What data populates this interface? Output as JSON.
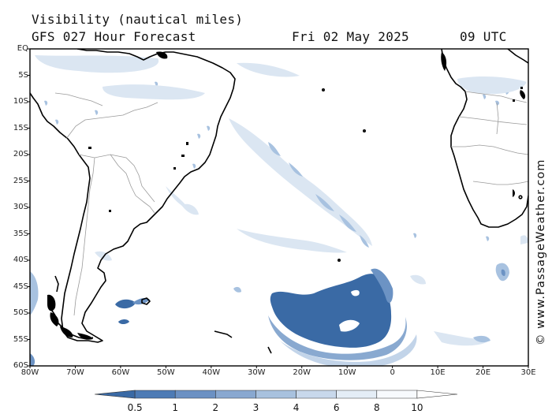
{
  "header": {
    "title": "Visibility (nautical miles)",
    "subtitle": "GFS 027 Hour Forecast",
    "date": "Fri 02 May 2025",
    "time": "09 UTC"
  },
  "credit": "© www.PassageWeather.com",
  "map": {
    "lat_labels": [
      "EQ",
      "5S",
      "10S",
      "15S",
      "20S",
      "25S",
      "30S",
      "35S",
      "40S",
      "45S",
      "50S",
      "55S",
      "60S"
    ],
    "lon_labels": [
      "80W",
      "70W",
      "60W",
      "50W",
      "40W",
      "30W",
      "20W",
      "10W",
      "0",
      "10E",
      "20E",
      "30E"
    ],
    "colors": {
      "land_border": "#000000",
      "country_border": "#9a9a9a",
      "fog_dense": "#3a6aa5",
      "fog_medium": "#6c93c4",
      "fog_light": "#a8c2e0",
      "fog_faint": "#dbe6f2"
    }
  },
  "colorbar": {
    "labels": [
      "0.5",
      "1",
      "2",
      "3",
      "4",
      "6",
      "8",
      "10"
    ],
    "colors": [
      "#3a6aa5",
      "#4d7bb5",
      "#6b91c3",
      "#89a8d0",
      "#a8c1de",
      "#c8d8eb",
      "#e4edf6",
      "#f7fafd",
      "#ffffff"
    ]
  }
}
